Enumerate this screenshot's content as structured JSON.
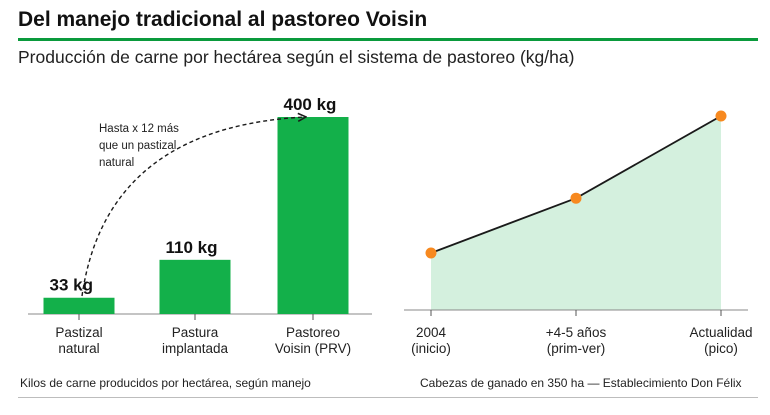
{
  "title": "Del manejo tradicional al pastoreo Voisin",
  "subtitle": "Producción de carne por hectárea según el sistema de pastoreo (kg/ha)",
  "colors": {
    "accent": "#0a9a3c",
    "bar": "#13b04a",
    "area": "#d4f0de",
    "point": "#f7891f",
    "line": "#1a1a1a"
  },
  "annotation": {
    "lines": [
      "Hasta x 12 más",
      "que un pastizal",
      "natural"
    ]
  },
  "chart_data": [
    {
      "type": "bar",
      "categories": [
        [
          "Pastizal",
          "natural"
        ],
        [
          "Pastura",
          "implantada"
        ],
        [
          "Pastoreo",
          "Voisin (PRV)"
        ]
      ],
      "values": [
        33,
        110,
        400
      ],
      "data_labels": [
        "33 kg",
        "110 kg",
        "400 kg"
      ],
      "ylim": [
        0,
        400
      ],
      "grid": false,
      "caption": "Kilos de carne producidos por hectárea, según manejo"
    },
    {
      "type": "area",
      "x_labels": [
        [
          "2004",
          "(inicio)"
        ],
        [
          "+4-5 años",
          "(prim-ver)"
        ],
        [
          "Actualidad",
          "(pico)"
        ]
      ],
      "values": [
        0.3,
        0.58,
        1.0
      ],
      "value_scale": "relative (no numeric axis shown)",
      "grid": false,
      "caption": "Cabezas de ganado en 350 ha — Establecimiento Don Félix"
    }
  ]
}
